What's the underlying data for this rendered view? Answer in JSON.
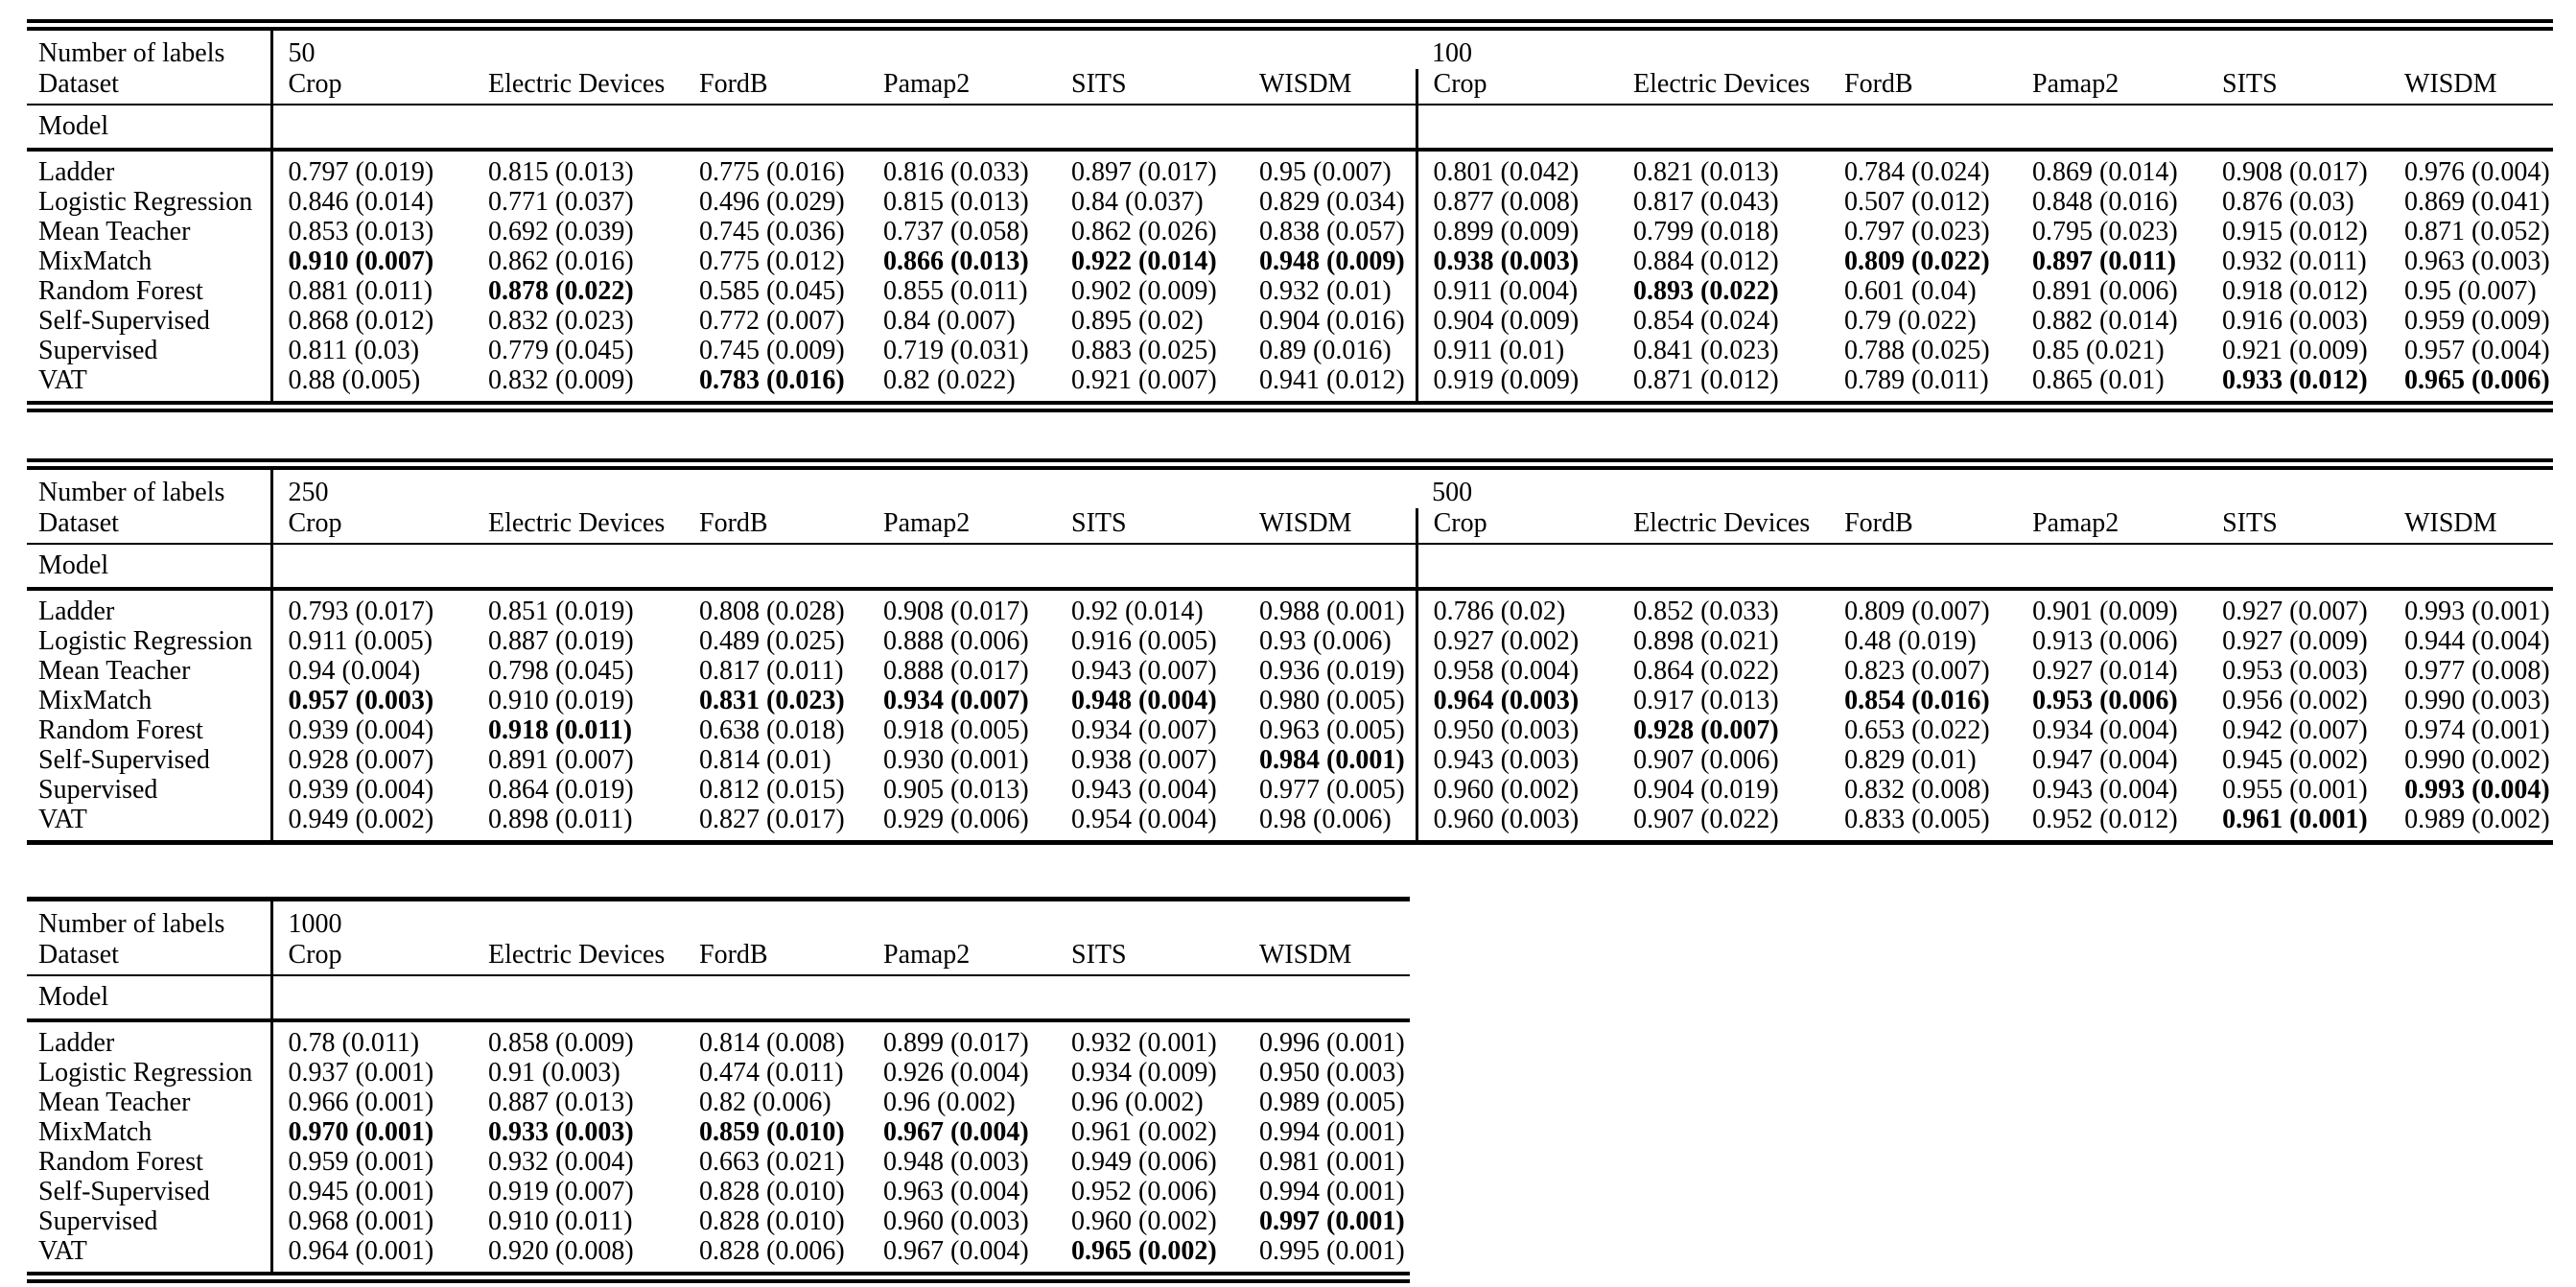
{
  "page": {
    "background": "#ffffff",
    "text_color": "#000000"
  },
  "table_header": {
    "number_of_labels_label": "Number of labels",
    "dataset_label": "Dataset",
    "model_label": "Model"
  },
  "datasets": [
    "Crop",
    "Electric Devices",
    "FordB",
    "Pamap2",
    "SITS",
    "WISDM"
  ],
  "models": [
    "Ladder",
    "Logistic Regression",
    "Mean Teacher",
    "MixMatch",
    "Random Forest",
    "Self-Supervised",
    "Supervised",
    "VAT"
  ],
  "tables": [
    {
      "halves": [
        {
          "num_labels": "50",
          "values": [
            [
              "0.797 (0.019)",
              "0.815 (0.013)",
              "0.775 (0.016)",
              "0.816 (0.033)",
              "0.897 (0.017)",
              "0.95 (0.007)"
            ],
            [
              "0.846 (0.014)",
              "0.771 (0.037)",
              "0.496 (0.029)",
              "0.815 (0.013)",
              "0.84 (0.037)",
              "0.829 (0.034)"
            ],
            [
              "0.853 (0.013)",
              "0.692 (0.039)",
              "0.745 (0.036)",
              "0.737 (0.058)",
              "0.862 (0.026)",
              "0.838 (0.057)"
            ],
            [
              "0.910 (0.007)",
              "0.862 (0.016)",
              "0.775 (0.012)",
              "0.866 (0.013)",
              "0.922 (0.014)",
              "0.948 (0.009)"
            ],
            [
              "0.881 (0.011)",
              "0.878 (0.022)",
              "0.585 (0.045)",
              "0.855 (0.011)",
              "0.902 (0.009)",
              "0.932 (0.01)"
            ],
            [
              "0.868 (0.012)",
              "0.832 (0.023)",
              "0.772 (0.007)",
              "0.84 (0.007)",
              "0.895 (0.02)",
              "0.904 (0.016)"
            ],
            [
              "0.811 (0.03)",
              "0.779 (0.045)",
              "0.745 (0.009)",
              "0.719 (0.031)",
              "0.883 (0.025)",
              "0.89 (0.016)"
            ],
            [
              "0.88 (0.005)",
              "0.832 (0.009)",
              "0.783 (0.016)",
              "0.82 (0.022)",
              "0.921 (0.007)",
              "0.941 (0.012)"
            ]
          ],
          "bold": [
            [
              3,
              0
            ],
            [
              3,
              3
            ],
            [
              3,
              4
            ],
            [
              3,
              5
            ],
            [
              4,
              1
            ],
            [
              7,
              2
            ]
          ]
        },
        {
          "num_labels": "100",
          "values": [
            [
              "0.801 (0.042)",
              "0.821 (0.013)",
              "0.784 (0.024)",
              "0.869 (0.014)",
              "0.908 (0.017)",
              "0.976 (0.004)"
            ],
            [
              "0.877 (0.008)",
              "0.817 (0.043)",
              "0.507 (0.012)",
              "0.848 (0.016)",
              "0.876 (0.03)",
              "0.869 (0.041)"
            ],
            [
              "0.899 (0.009)",
              "0.799 (0.018)",
              "0.797 (0.023)",
              "0.795 (0.023)",
              "0.915 (0.012)",
              "0.871 (0.052)"
            ],
            [
              "0.938 (0.003)",
              "0.884 (0.012)",
              "0.809 (0.022)",
              "0.897 (0.011)",
              "0.932 (0.011)",
              "0.963 (0.003)"
            ],
            [
              "0.911 (0.004)",
              "0.893 (0.022)",
              "0.601 (0.04)",
              "0.891 (0.006)",
              "0.918 (0.012)",
              "0.95 (0.007)"
            ],
            [
              "0.904 (0.009)",
              "0.854 (0.024)",
              "0.79 (0.022)",
              "0.882 (0.014)",
              "0.916 (0.003)",
              "0.959 (0.009)"
            ],
            [
              "0.911 (0.01)",
              "0.841 (0.023)",
              "0.788 (0.025)",
              "0.85 (0.021)",
              "0.921 (0.009)",
              "0.957 (0.004)"
            ],
            [
              "0.919 (0.009)",
              "0.871 (0.012)",
              "0.789 (0.011)",
              "0.865 (0.01)",
              "0.933 (0.012)",
              "0.965 (0.006)"
            ]
          ],
          "bold": [
            [
              3,
              0
            ],
            [
              3,
              2
            ],
            [
              3,
              3
            ],
            [
              4,
              1
            ],
            [
              7,
              4
            ],
            [
              7,
              5
            ]
          ]
        }
      ]
    },
    {
      "halves": [
        {
          "num_labels": "250",
          "values": [
            [
              "0.793 (0.017)",
              "0.851 (0.019)",
              "0.808 (0.028)",
              "0.908 (0.017)",
              "0.92 (0.014)",
              "0.988 (0.001)"
            ],
            [
              "0.911 (0.005)",
              "0.887 (0.019)",
              "0.489 (0.025)",
              "0.888 (0.006)",
              "0.916 (0.005)",
              "0.93 (0.006)"
            ],
            [
              "0.94 (0.004)",
              "0.798 (0.045)",
              "0.817 (0.011)",
              "0.888 (0.017)",
              "0.943 (0.007)",
              "0.936 (0.019)"
            ],
            [
              "0.957 (0.003)",
              "0.910 (0.019)",
              "0.831 (0.023)",
              "0.934 (0.007)",
              "0.948 (0.004)",
              "0.980 (0.005)"
            ],
            [
              "0.939 (0.004)",
              "0.918 (0.011)",
              "0.638 (0.018)",
              "0.918 (0.005)",
              "0.934 (0.007)",
              "0.963 (0.005)"
            ],
            [
              "0.928 (0.007)",
              "0.891 (0.007)",
              "0.814 (0.01)",
              "0.930 (0.001)",
              "0.938 (0.007)",
              "0.984 (0.001)"
            ],
            [
              "0.939 (0.004)",
              "0.864 (0.019)",
              "0.812 (0.015)",
              "0.905 (0.013)",
              "0.943 (0.004)",
              "0.977 (0.005)"
            ],
            [
              "0.949 (0.002)",
              "0.898 (0.011)",
              "0.827 (0.017)",
              "0.929 (0.006)",
              "0.954 (0.004)",
              "0.98 (0.006)"
            ]
          ],
          "bold": [
            [
              3,
              0
            ],
            [
              3,
              2
            ],
            [
              3,
              3
            ],
            [
              3,
              4
            ],
            [
              4,
              1
            ],
            [
              5,
              5
            ]
          ]
        },
        {
          "num_labels": "500",
          "values": [
            [
              "0.786 (0.02)",
              "0.852 (0.033)",
              "0.809 (0.007)",
              "0.901 (0.009)",
              "0.927 (0.007)",
              "0.993 (0.001)"
            ],
            [
              "0.927 (0.002)",
              "0.898 (0.021)",
              "0.48 (0.019)",
              "0.913 (0.006)",
              "0.927 (0.009)",
              "0.944 (0.004)"
            ],
            [
              "0.958 (0.004)",
              "0.864 (0.022)",
              "0.823 (0.007)",
              "0.927 (0.014)",
              "0.953 (0.003)",
              "0.977 (0.008)"
            ],
            [
              "0.964 (0.003)",
              "0.917 (0.013)",
              "0.854 (0.016)",
              "0.953 (0.006)",
              "0.956 (0.002)",
              "0.990 (0.003)"
            ],
            [
              "0.950 (0.003)",
              "0.928 (0.007)",
              "0.653 (0.022)",
              "0.934 (0.004)",
              "0.942 (0.007)",
              "0.974 (0.001)"
            ],
            [
              "0.943 (0.003)",
              "0.907 (0.006)",
              "0.829 (0.01)",
              "0.947 (0.004)",
              "0.945 (0.002)",
              "0.990 (0.002)"
            ],
            [
              "0.960 (0.002)",
              "0.904 (0.019)",
              "0.832 (0.008)",
              "0.943 (0.004)",
              "0.955 (0.001)",
              "0.993 (0.004)"
            ],
            [
              "0.960 (0.003)",
              "0.907 (0.022)",
              "0.833 (0.005)",
              "0.952 (0.012)",
              "0.961 (0.001)",
              "0.989 (0.002)"
            ]
          ],
          "bold": [
            [
              3,
              0
            ],
            [
              3,
              2
            ],
            [
              3,
              3
            ],
            [
              4,
              1
            ],
            [
              6,
              5
            ],
            [
              7,
              4
            ]
          ]
        }
      ]
    },
    {
      "halves": [
        {
          "num_labels": "1000",
          "values": [
            [
              "0.78 (0.011)",
              "0.858 (0.009)",
              "0.814 (0.008)",
              "0.899 (0.017)",
              "0.932 (0.001)",
              "0.996 (0.001)"
            ],
            [
              "0.937 (0.001)",
              "0.91 (0.003)",
              "0.474 (0.011)",
              "0.926 (0.004)",
              "0.934 (0.009)",
              "0.950 (0.003)"
            ],
            [
              "0.966 (0.001)",
              "0.887 (0.013)",
              "0.82 (0.006)",
              "0.96 (0.002)",
              "0.96 (0.002)",
              "0.989 (0.005)"
            ],
            [
              "0.970 (0.001)",
              "0.933 (0.003)",
              "0.859 (0.010)",
              "0.967 (0.004)",
              "0.961 (0.002)",
              "0.994 (0.001)"
            ],
            [
              "0.959 (0.001)",
              "0.932 (0.004)",
              "0.663 (0.021)",
              "0.948 (0.003)",
              "0.949 (0.006)",
              "0.981 (0.001)"
            ],
            [
              "0.945 (0.001)",
              "0.919 (0.007)",
              "0.828 (0.010)",
              "0.963 (0.004)",
              "0.952 (0.006)",
              "0.994 (0.001)"
            ],
            [
              "0.968 (0.001)",
              "0.910 (0.011)",
              "0.828 (0.010)",
              "0.960 (0.003)",
              "0.960 (0.002)",
              "0.997 (0.001)"
            ],
            [
              "0.964 (0.001)",
              "0.920 (0.008)",
              "0.828 (0.006)",
              "0.967 (0.004)",
              "0.965 (0.002)",
              "0.995 (0.001)"
            ]
          ],
          "bold": [
            [
              3,
              0
            ],
            [
              3,
              1
            ],
            [
              3,
              2
            ],
            [
              3,
              3
            ],
            [
              6,
              5
            ],
            [
              7,
              4
            ]
          ]
        }
      ]
    }
  ]
}
